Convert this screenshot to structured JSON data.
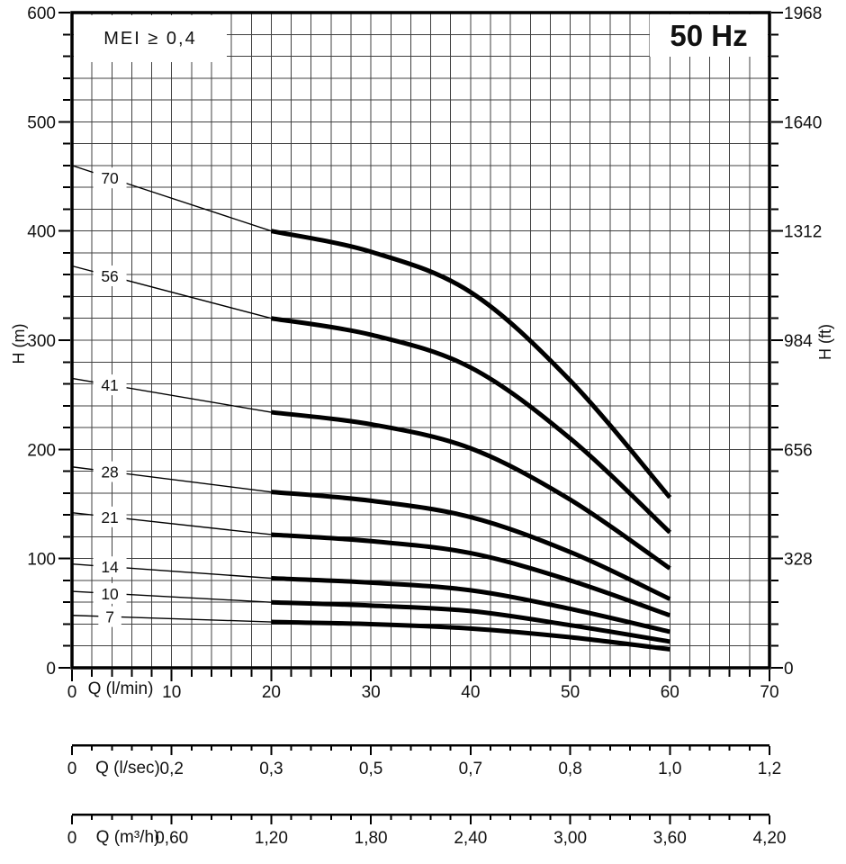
{
  "chart_data": {
    "type": "line",
    "title": "50 Hz",
    "frequency_label": "50 Hz",
    "mei_label": "MEI ≥ 0,4",
    "background_color": "#ffffff",
    "curve_color": "#000000",
    "grid_color": "#404040",
    "grid": {
      "x_minor_step": 2,
      "y_minor_step": 20
    },
    "x_axis_main": {
      "label": "Q (l/min)",
      "range": [
        0,
        70
      ],
      "ticks": [
        0,
        10,
        20,
        30,
        40,
        50,
        60,
        70
      ]
    },
    "y_axis_left": {
      "label": "H (m)",
      "range": [
        0,
        600
      ],
      "ticks": [
        0,
        100,
        200,
        300,
        400,
        500,
        600
      ]
    },
    "y_axis_right": {
      "label": "H (ft)",
      "tick_labels": [
        "0",
        "328",
        "656",
        "984",
        "1312",
        "1640",
        "1968"
      ],
      "positions_m": [
        0,
        100,
        200,
        300,
        400,
        500,
        600
      ]
    },
    "x_axis_lsec": {
      "label": "Q (l/sec)",
      "tick_labels": [
        "0",
        "0,2",
        "0,3",
        "0,5",
        "0,7",
        "0,8",
        "1,0",
        "1,2"
      ],
      "positions_lmin": [
        0,
        10,
        20,
        30,
        40,
        50,
        60,
        70
      ]
    },
    "x_axis_m3h": {
      "label": "Q (m³/h)",
      "tick_labels": [
        "0",
        "0,60",
        "1,20",
        "1,80",
        "2,40",
        "3,00",
        "3,60",
        "4,20"
      ],
      "positions_lmin": [
        0,
        10,
        20,
        30,
        40,
        50,
        60,
        70
      ]
    },
    "style": {
      "thin_until_q": 20,
      "curve_label_q": 3.8
    },
    "series": [
      {
        "label": "70",
        "points": [
          [
            0,
            460
          ],
          [
            20,
            400
          ],
          [
            30,
            381
          ],
          [
            40,
            344
          ],
          [
            50,
            263
          ],
          [
            60,
            156
          ]
        ]
      },
      {
        "label": "56",
        "points": [
          [
            0,
            368
          ],
          [
            20,
            320
          ],
          [
            30,
            305
          ],
          [
            40,
            275
          ],
          [
            50,
            210
          ],
          [
            60,
            124
          ]
        ]
      },
      {
        "label": "41",
        "points": [
          [
            0,
            265
          ],
          [
            20,
            234
          ],
          [
            30,
            223
          ],
          [
            40,
            201
          ],
          [
            50,
            154
          ],
          [
            60,
            91
          ]
        ]
      },
      {
        "label": "28",
        "points": [
          [
            0,
            184
          ],
          [
            20,
            161
          ],
          [
            30,
            153
          ],
          [
            40,
            138
          ],
          [
            50,
            106
          ],
          [
            60,
            63
          ]
        ]
      },
      {
        "label": "21",
        "points": [
          [
            0,
            142
          ],
          [
            20,
            122
          ],
          [
            30,
            116
          ],
          [
            40,
            105
          ],
          [
            50,
            80
          ],
          [
            60,
            48
          ]
        ]
      },
      {
        "label": "14",
        "points": [
          [
            0,
            95
          ],
          [
            20,
            82
          ],
          [
            30,
            78
          ],
          [
            40,
            71
          ],
          [
            50,
            54
          ],
          [
            60,
            33
          ]
        ]
      },
      {
        "label": "10",
        "points": [
          [
            0,
            70
          ],
          [
            20,
            60
          ],
          [
            30,
            57
          ],
          [
            40,
            52
          ],
          [
            50,
            39
          ],
          [
            60,
            24
          ]
        ]
      },
      {
        "label": "7",
        "points": [
          [
            0,
            48
          ],
          [
            20,
            42
          ],
          [
            30,
            40
          ],
          [
            40,
            36
          ],
          [
            50,
            28
          ],
          [
            60,
            17
          ]
        ]
      }
    ]
  }
}
